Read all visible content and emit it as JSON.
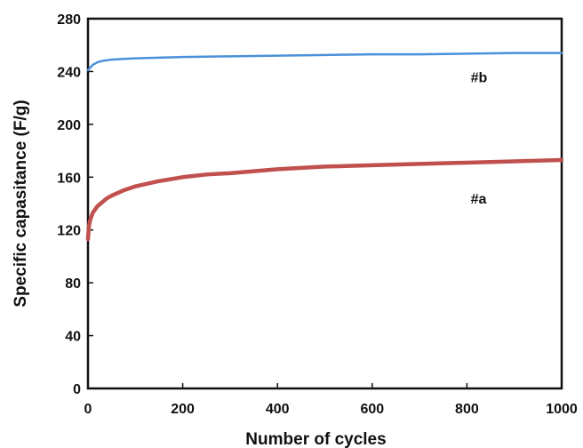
{
  "chart_data": {
    "type": "line",
    "title": "",
    "xlabel": "Number of cycles",
    "ylabel": "Specific capasitance (F/g)",
    "xlim": [
      0,
      1000
    ],
    "ylim": [
      0,
      280
    ],
    "xticks": [
      0,
      200,
      400,
      600,
      800,
      1000
    ],
    "yticks": [
      0,
      40,
      80,
      120,
      160,
      200,
      240,
      280
    ],
    "x_tick_labels": [
      "0",
      "200",
      "400",
      "600",
      "800",
      "1000"
    ],
    "y_tick_labels": [
      "0",
      "40",
      "80",
      "120",
      "160",
      "200",
      "240",
      "280"
    ],
    "grid": false,
    "legend": "none",
    "series": [
      {
        "name": "#b",
        "color": "#4a90d9",
        "x": [
          0,
          5,
          10,
          20,
          30,
          50,
          75,
          100,
          150,
          200,
          300,
          400,
          500,
          600,
          700,
          800,
          900,
          1000
        ],
        "values": [
          241,
          243,
          245,
          247,
          248,
          249,
          249.5,
          250,
          250.5,
          251,
          251.5,
          252,
          252.5,
          253,
          253,
          253.5,
          254,
          254
        ]
      },
      {
        "name": "#a",
        "color": "#c0504d",
        "x": [
          0,
          2,
          5,
          10,
          20,
          30,
          40,
          50,
          75,
          100,
          150,
          200,
          250,
          300,
          400,
          500,
          600,
          700,
          800,
          900,
          1000
        ],
        "values": [
          113,
          123,
          128,
          133,
          138,
          141,
          144,
          146,
          150,
          153,
          157,
          160,
          162,
          163,
          166,
          168,
          169,
          170,
          171,
          172,
          173
        ]
      }
    ]
  }
}
